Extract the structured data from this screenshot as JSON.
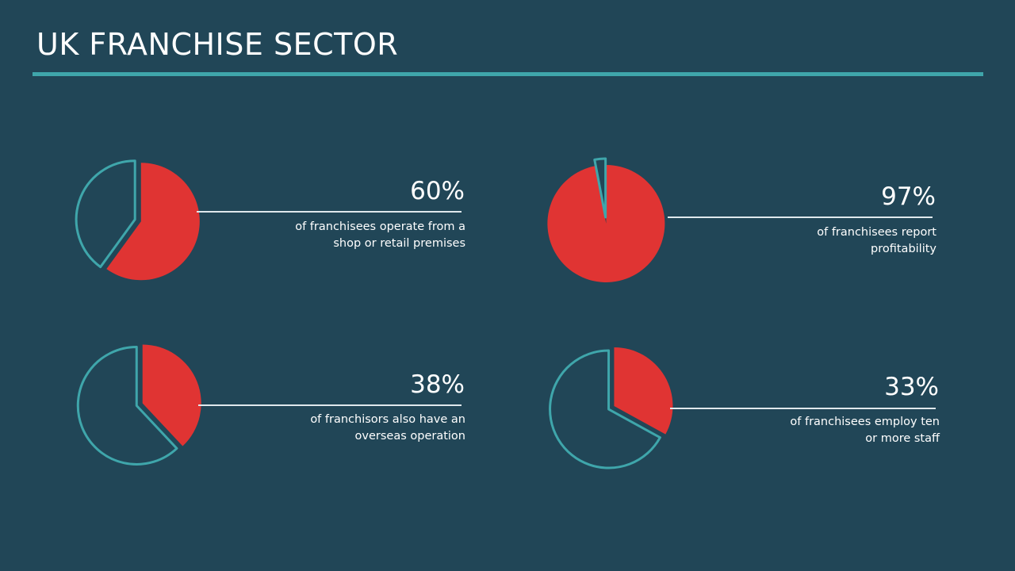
{
  "title": "UK FRANCHISE SECTOR",
  "colors": {
    "background": "#214657",
    "accent": "#3fa6ab",
    "highlight": "#e03433",
    "text": "#ffffff"
  },
  "chart_data": [
    {
      "type": "pie",
      "values": [
        60,
        40
      ],
      "label": "60%",
      "description": "of franchisees operate from a\nshop or retail premises"
    },
    {
      "type": "pie",
      "values": [
        97,
        3
      ],
      "label": "97%",
      "description": "of franchisees report\nprofitability"
    },
    {
      "type": "pie",
      "values": [
        38,
        62
      ],
      "label": "38%",
      "description": "of franchisors also have an\noverseas operation"
    },
    {
      "type": "pie",
      "values": [
        33,
        67
      ],
      "label": "33%",
      "description": "of franchisees employ ten\nor more staff"
    }
  ]
}
